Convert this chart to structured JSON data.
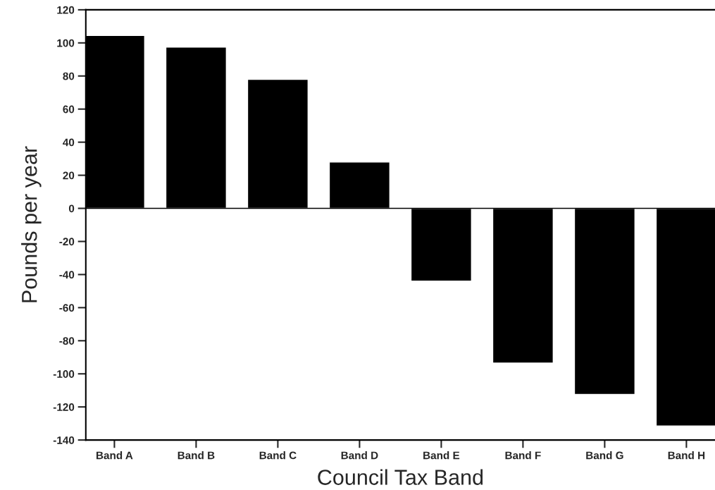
{
  "chart_data": {
    "type": "bar",
    "xlabel": "Council Tax Band",
    "ylabel": "Pounds per year",
    "categories": [
      "Band A",
      "Band B",
      "Band C",
      "Band D",
      "Band E",
      "Band F",
      "Band G",
      "Band H"
    ],
    "values": [
      104.5,
      97.5,
      78,
      28,
      -44,
      -93.5,
      -112.5,
      -131.5
    ],
    "color": "#000000",
    "ylim": [
      -140,
      120
    ],
    "yticks": [
      -140,
      -120,
      -100,
      -80,
      -60,
      -40,
      -20,
      0,
      20,
      40,
      60,
      80,
      100,
      120
    ],
    "ref_lines": [
      {
        "axis": "y",
        "value": 0,
        "color": "#000000",
        "line_style": "solid"
      }
    ],
    "grid": false
  }
}
